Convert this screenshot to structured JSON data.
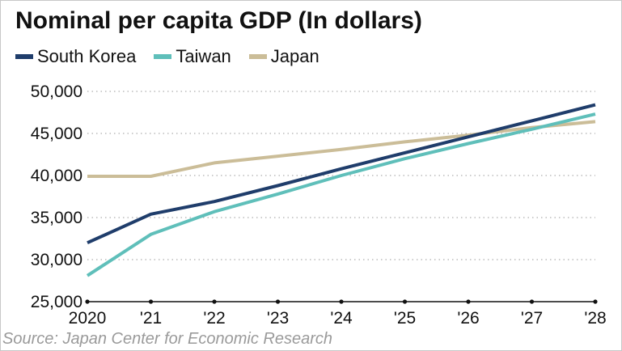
{
  "chart_data": {
    "type": "line",
    "title": "Nominal per capita GDP (In dollars)",
    "x": [
      "2020",
      "'21",
      "'22",
      "'23",
      "'24",
      "'25",
      "'26",
      "'27",
      "'28"
    ],
    "yticks": [
      "25,000",
      "30,000",
      "35,000",
      "40,000",
      "45,000",
      "50,000"
    ],
    "ylim": [
      25000,
      50000
    ],
    "grid": true,
    "legend_position": "top-left",
    "series": [
      {
        "name": "South Korea",
        "color": "#1f3d6b",
        "values": [
          32000,
          35400,
          36900,
          38800,
          40800,
          42700,
          44600,
          46500,
          48400
        ]
      },
      {
        "name": "Taiwan",
        "color": "#5fbfba",
        "values": [
          28100,
          33000,
          35700,
          37800,
          40000,
          42000,
          43800,
          45500,
          47300
        ]
      },
      {
        "name": "Japan",
        "color": "#cbbd98",
        "values": [
          39900,
          39900,
          41500,
          42300,
          43100,
          44000,
          44800,
          45700,
          46400
        ]
      }
    ],
    "source": "Source: Japan Center for Economic Research"
  }
}
